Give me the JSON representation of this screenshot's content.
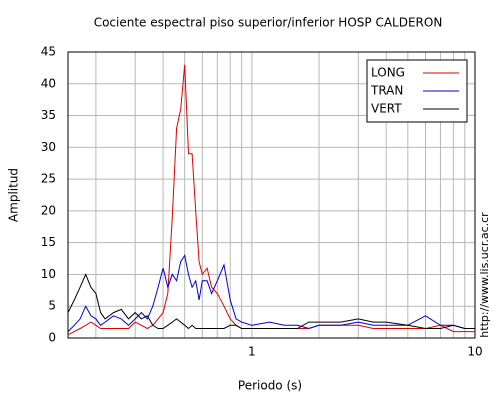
{
  "chart_data": {
    "type": "line",
    "title": "Cociente espectral piso superior/inferior  HOSP CALDERON",
    "x_label": "Periodo (s)",
    "y_label": "Amplitud",
    "side_note": "http://www.lis.ucr.ac.cr",
    "x": [
      0.15,
      0.16,
      0.17,
      0.18,
      0.19,
      0.2,
      0.21,
      0.22,
      0.24,
      0.26,
      0.28,
      0.3,
      0.32,
      0.34,
      0.36,
      0.38,
      0.4,
      0.42,
      0.44,
      0.46,
      0.48,
      0.5,
      0.52,
      0.54,
      0.56,
      0.58,
      0.6,
      0.63,
      0.66,
      0.7,
      0.75,
      0.8,
      0.85,
      0.9,
      1,
      1.2,
      1.4,
      1.6,
      1.8,
      2,
      2.5,
      3,
      3.5,
      4,
      5,
      6,
      7,
      8,
      9,
      10
    ],
    "series": [
      {
        "name": "LONG",
        "color": "#e00000",
        "values": [
          0.5,
          1,
          1.5,
          2,
          2.5,
          2,
          1.5,
          1.5,
          1.5,
          1.5,
          1.5,
          2.5,
          2,
          1.5,
          2,
          3,
          4,
          7,
          19,
          33,
          36,
          43,
          29,
          29,
          20,
          12,
          10,
          11,
          8,
          7,
          5,
          3,
          2,
          1.5,
          1.5,
          1.5,
          1.5,
          1.5,
          1.5,
          2,
          2,
          2,
          1.5,
          1.5,
          1.5,
          1.5,
          2,
          1,
          1,
          1
        ]
      },
      {
        "name": "TRAN",
        "color": "#0000d0",
        "values": [
          1,
          2,
          3,
          5,
          3.5,
          3,
          2,
          2.5,
          3.5,
          3,
          2,
          3,
          4,
          3,
          5,
          8,
          11,
          8,
          10,
          9,
          12,
          13,
          10,
          8,
          9,
          6,
          9,
          9,
          7,
          9,
          11.5,
          6,
          3,
          2.5,
          2,
          2.5,
          2,
          2,
          1.5,
          2,
          2,
          2.5,
          2,
          2,
          2,
          3.5,
          2,
          2,
          1.5,
          1.5
        ]
      },
      {
        "name": "VERT",
        "color": "#000000",
        "values": [
          4,
          6,
          8,
          10,
          8,
          7,
          4,
          3,
          4,
          4.5,
          3,
          4,
          3,
          3.5,
          2,
          1.5,
          1.5,
          2,
          2.5,
          3,
          2.5,
          2,
          1.5,
          2,
          1.5,
          1.5,
          1.5,
          1.5,
          1.5,
          1.5,
          1.5,
          2,
          2,
          1.5,
          1.5,
          1.5,
          1.5,
          1.5,
          2.5,
          2.5,
          2.5,
          3,
          2.5,
          2.5,
          2,
          1.5,
          1.5,
          2,
          1.5,
          1.5
        ]
      }
    ],
    "x_log": true,
    "xlim": [
      0.15,
      10
    ],
    "ylim": [
      0,
      45
    ],
    "xticks": [
      1,
      10
    ],
    "x_minor_grid": [
      0.2,
      0.3,
      0.4,
      0.5,
      0.6,
      0.7,
      0.8,
      0.9,
      2,
      3,
      4,
      5,
      6,
      7,
      8,
      9
    ],
    "yticks": [
      0,
      5,
      10,
      15,
      20,
      25,
      30,
      35,
      40,
      45
    ],
    "grid": true,
    "legend": "top-right"
  }
}
